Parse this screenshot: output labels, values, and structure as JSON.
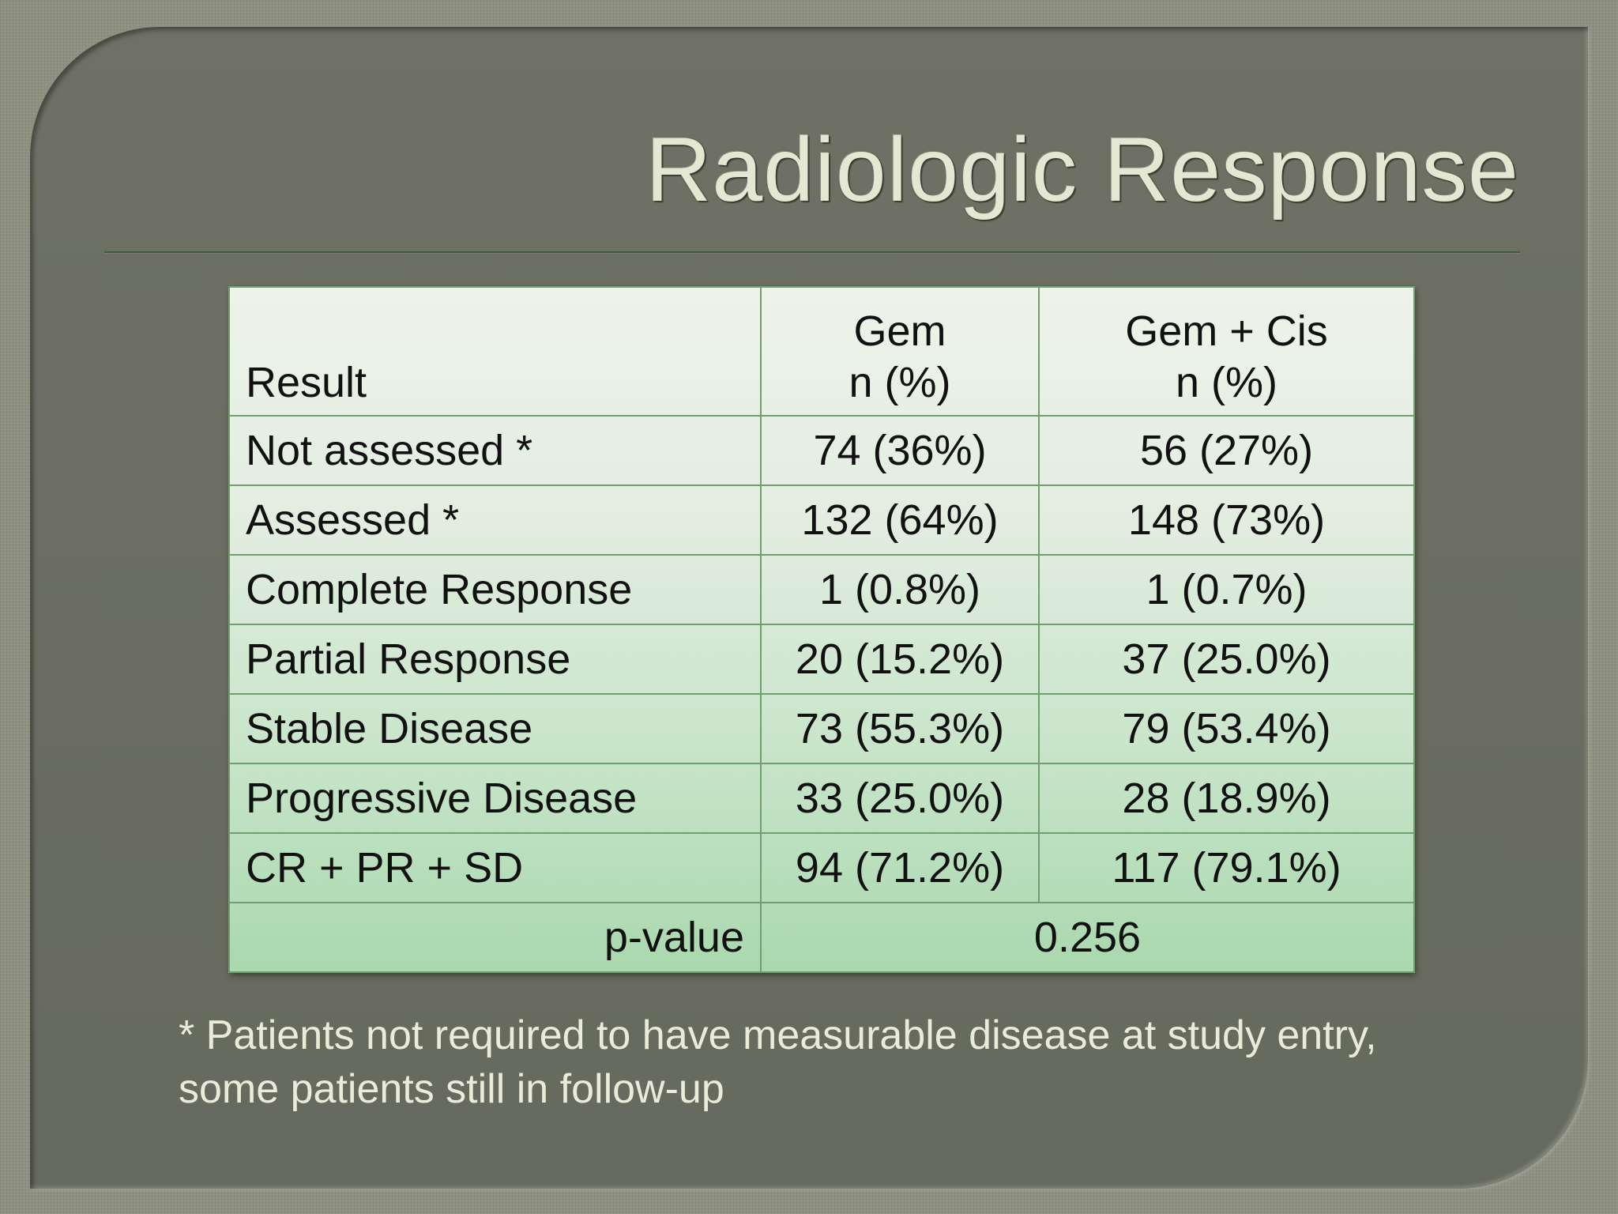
{
  "slide": {
    "title": "Radiologic Response",
    "colors": {
      "background": "#8e9080",
      "panel": "#6b6e61",
      "title_text": "#e4e8d2",
      "rule": "#3f5c3f",
      "table_top": "#eef3ea",
      "table_bottom": "#a9d8ae",
      "table_border": "#6f9e6f",
      "footnote_text": "#e9ecd8"
    }
  },
  "table": {
    "header": {
      "result": "Result",
      "gem_line1": "Gem",
      "gem_line2": "n (%)",
      "gemcis_line1": "Gem + Cis",
      "gemcis_line2": "n (%)"
    },
    "rows": [
      {
        "label": "Not assessed *",
        "gem": "74 (36%)",
        "gemcis": "56 (27%)"
      },
      {
        "label": "Assessed *",
        "gem": "132 (64%)",
        "gemcis": "148 (73%)"
      },
      {
        "label": "Complete Response",
        "gem": "1 (0.8%)",
        "gemcis": "1 (0.7%)"
      },
      {
        "label": "Partial Response",
        "gem": "20 (15.2%)",
        "gemcis": "37 (25.0%)"
      },
      {
        "label": "Stable Disease",
        "gem": "73 (55.3%)",
        "gemcis": "79 (53.4%)"
      },
      {
        "label": "Progressive Disease",
        "gem": "33 (25.0%)",
        "gemcis": "28 (18.9%)"
      },
      {
        "label": "CR + PR + SD",
        "gem": "94 (71.2%)",
        "gemcis": "117 (79.1%)"
      }
    ],
    "pvalue": {
      "label": "p-value",
      "value": "0.256"
    }
  },
  "footnote": {
    "line1": "* Patients not required to have measurable disease at study entry,",
    "line2": "some patients still in follow-up"
  }
}
